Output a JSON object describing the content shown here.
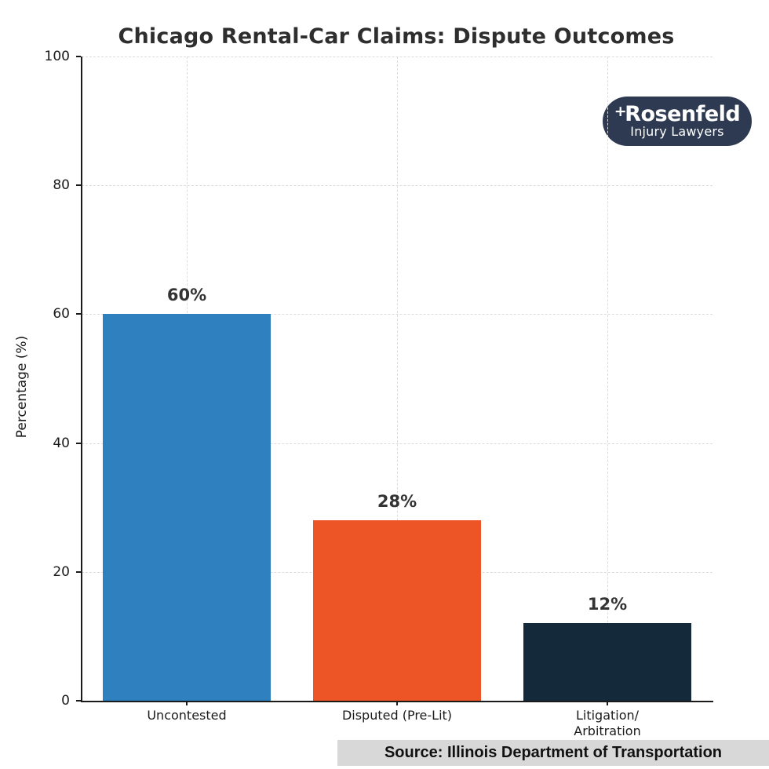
{
  "logo": {
    "plus": "+",
    "name": "Rosenfeld",
    "tagline": "Injury Lawyers",
    "bg_color": "#2e3a52",
    "text_color": "#ffffff"
  },
  "source": {
    "text": "Source: Illinois Department of Transportation"
  },
  "chart_data": {
    "type": "bar",
    "title": "Chicago Rental-Car Claims: Dispute Outcomes",
    "categories": [
      "Uncontested",
      "Disputed (Pre-Lit)",
      "Litigation/Arbitration"
    ],
    "category_label_lines": [
      [
        "Uncontested"
      ],
      [
        "Disputed (Pre-Lit)"
      ],
      [
        "Litigation/",
        "Arbitration"
      ]
    ],
    "values": [
      60,
      28,
      12
    ],
    "value_labels": [
      "60%",
      "28%",
      "12%"
    ],
    "bar_colors": [
      "#2f80be",
      "#ee5526",
      "#142a3b"
    ],
    "xlabel": "",
    "ylabel": "Percentage (%)",
    "ylim": [
      0,
      100
    ],
    "yticks": [
      0,
      20,
      40,
      60,
      80,
      100
    ],
    "grid": {
      "horizontal": true,
      "vertical": true,
      "style": "dashed",
      "color": "#dcdcdc"
    },
    "legend": null,
    "colors": {
      "title": "#2e2e2e",
      "axis": "#1a1a1a",
      "value_label": "#333333",
      "footer_bg": "#d8d8d8"
    }
  }
}
